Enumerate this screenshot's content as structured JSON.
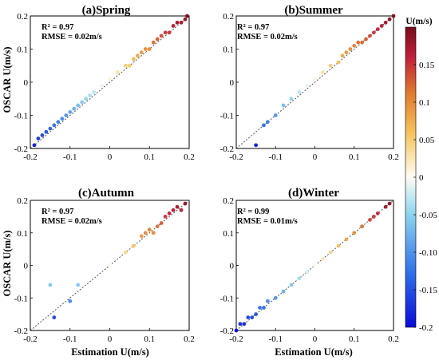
{
  "figure": {
    "ylabel": "OSCAR U(m/s)",
    "xlabel": "Estimation U(m/s)"
  },
  "colorbar": {
    "title": "U(m/s)",
    "range": [
      -0.2,
      0.2
    ],
    "ticks": [
      "0.15",
      "0.1",
      "0.05",
      "0",
      "-0.05",
      "-0.10",
      "-0.15",
      "-0.2"
    ],
    "tick_values": [
      0.15,
      0.1,
      0.05,
      0,
      -0.05,
      -0.1,
      -0.15,
      -0.2
    ],
    "colormap_stops": [
      "#0a0ad8",
      "#2f6fe8",
      "#8fd6f0",
      "#fffdf4",
      "#f5c25a",
      "#e07a2f",
      "#c0203a",
      "#7a0a1a"
    ]
  },
  "chart_data": [
    {
      "type": "scatter",
      "title": "(a)Spring",
      "r2_text": "R² = 0.97",
      "rmse_text": "RMSE = 0.02m/s",
      "xlim": [
        -0.2,
        0.2
      ],
      "ylim": [
        -0.2,
        0.2
      ],
      "xticks": [
        "-0.2",
        "-0.1",
        "0",
        "0.1",
        "0.2"
      ],
      "yticks": [
        "-0.2",
        "-0.1",
        "0",
        "0.1",
        "0.2"
      ],
      "x": [
        -0.19,
        -0.18,
        -0.17,
        -0.16,
        -0.15,
        -0.14,
        -0.13,
        -0.12,
        -0.11,
        -0.1,
        -0.09,
        -0.08,
        -0.07,
        -0.06,
        -0.05,
        -0.04,
        -0.02,
        0.0,
        0.02,
        0.04,
        0.05,
        0.06,
        0.07,
        0.08,
        0.09,
        0.1,
        0.11,
        0.12,
        0.13,
        0.14,
        0.15,
        0.16,
        0.17,
        0.18,
        0.19,
        0.195
      ],
      "y": [
        -0.19,
        -0.17,
        -0.16,
        -0.15,
        -0.14,
        -0.13,
        -0.12,
        -0.11,
        -0.1,
        -0.09,
        -0.08,
        -0.07,
        -0.06,
        -0.05,
        -0.04,
        -0.03,
        -0.01,
        0.01,
        0.03,
        0.05,
        0.05,
        0.07,
        0.08,
        0.09,
        0.1,
        0.1,
        0.12,
        0.13,
        0.14,
        0.15,
        0.15,
        0.17,
        0.18,
        0.18,
        0.19,
        0.2
      ]
    },
    {
      "type": "scatter",
      "title": "(b)Summer",
      "r2_text": "R² = 0.97",
      "rmse_text": "RMSE = 0.02m/s",
      "xlim": [
        -0.2,
        0.2
      ],
      "ylim": [
        -0.2,
        0.2
      ],
      "xticks": [
        "-0.2",
        "-0.1",
        "0",
        "0.1",
        "0.2"
      ],
      "yticks": [
        "-0.2",
        "-0.1",
        "0",
        "0.1",
        "0.2"
      ],
      "x": [
        -0.15,
        -0.13,
        -0.12,
        -0.1,
        -0.08,
        -0.06,
        -0.04,
        -0.02,
        0.0,
        0.02,
        0.04,
        0.06,
        0.07,
        0.08,
        0.09,
        0.1,
        0.11,
        0.12,
        0.13,
        0.14,
        0.15,
        0.16,
        0.17,
        0.18,
        0.19,
        0.2
      ],
      "y": [
        -0.19,
        -0.13,
        -0.12,
        -0.1,
        -0.07,
        -0.05,
        -0.03,
        -0.01,
        0.01,
        0.03,
        0.05,
        0.06,
        0.08,
        0.09,
        0.1,
        0.11,
        0.12,
        0.12,
        0.13,
        0.14,
        0.15,
        0.16,
        0.17,
        0.18,
        0.19,
        0.2
      ]
    },
    {
      "type": "scatter",
      "title": "(c)Autumn",
      "r2_text": "R² = 0.97",
      "rmse_text": "RMSE = 0.02m/s",
      "xlim": [
        -0.2,
        0.2
      ],
      "ylim": [
        -0.2,
        0.2
      ],
      "xticks": [
        "-0.2",
        "-0.1",
        "0",
        "0.1",
        "0.2"
      ],
      "yticks": [
        "-0.2",
        "-0.1",
        "0",
        "0.1",
        "0.2"
      ],
      "x": [
        -0.15,
        -0.14,
        -0.1,
        -0.08,
        0.0,
        0.04,
        0.06,
        0.08,
        0.09,
        0.1,
        0.11,
        0.12,
        0.13,
        0.14,
        0.15,
        0.16,
        0.17,
        0.18,
        0.19
      ],
      "y": [
        -0.06,
        -0.16,
        -0.11,
        -0.06,
        0.0,
        0.04,
        0.06,
        0.09,
        0.1,
        0.11,
        0.1,
        0.12,
        0.13,
        0.15,
        0.16,
        0.17,
        0.18,
        0.17,
        0.19
      ]
    },
    {
      "type": "scatter",
      "title": "(d)Winter",
      "r2_text": "R² = 0.99",
      "rmse_text": "RMSE = 0.01m/s",
      "xlim": [
        -0.2,
        0.2
      ],
      "ylim": [
        -0.2,
        0.2
      ],
      "xticks": [
        "-0.2",
        "-0.1",
        "0",
        "0.1",
        "0.2"
      ],
      "yticks": [
        "-0.2",
        "-0.1",
        "0",
        "0.1",
        "0.2"
      ],
      "x": [
        -0.2,
        -0.19,
        -0.18,
        -0.17,
        -0.16,
        -0.15,
        -0.14,
        -0.13,
        -0.12,
        -0.1,
        -0.08,
        -0.06,
        -0.04,
        -0.02,
        0.0,
        0.02,
        0.04,
        0.06,
        0.08,
        0.1,
        0.12,
        0.14,
        0.15,
        0.16,
        0.18,
        0.19
      ],
      "y": [
        -0.2,
        -0.18,
        -0.18,
        -0.16,
        -0.16,
        -0.15,
        -0.13,
        -0.13,
        -0.11,
        -0.1,
        -0.08,
        -0.06,
        -0.04,
        -0.02,
        0.0,
        0.02,
        0.04,
        0.06,
        0.08,
        0.1,
        0.12,
        0.14,
        0.15,
        0.16,
        0.18,
        0.19
      ]
    }
  ]
}
